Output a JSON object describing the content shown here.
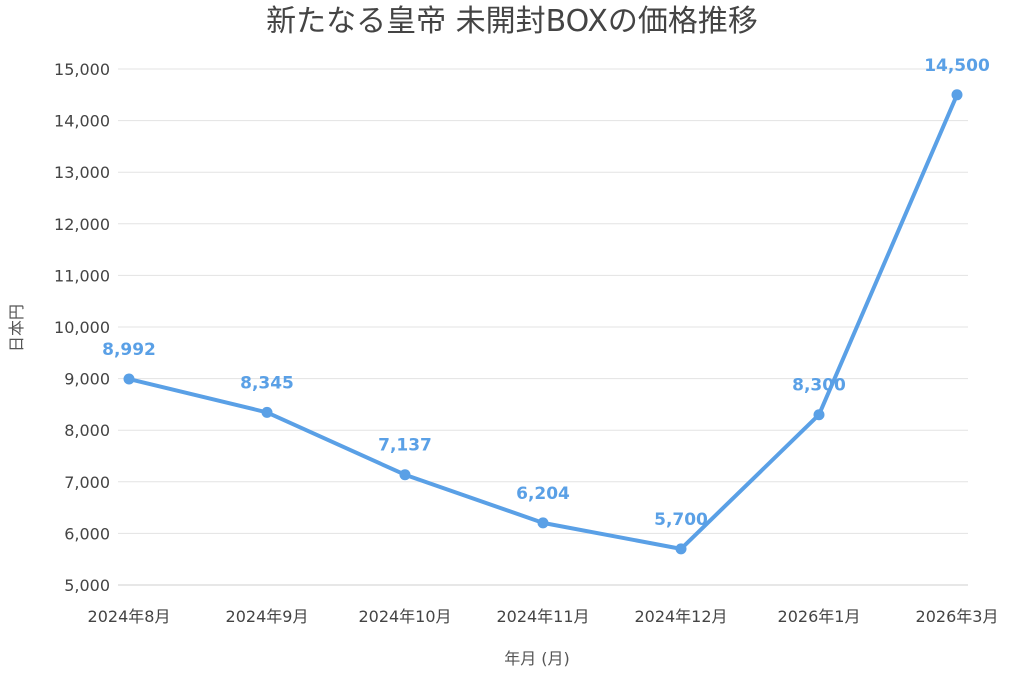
{
  "chart_data": {
    "type": "line",
    "title": "新たなる皇帝 未開封BOXの価格推移",
    "xlabel": "年月 (月)",
    "ylabel": "日本円",
    "categories": [
      "2024年8月",
      "2024年9月",
      "2024年10月",
      "2024年11月",
      "2024年12月",
      "2026年1月",
      "2026年3月"
    ],
    "series": [
      {
        "values": [
          8992,
          8345,
          7137,
          6204,
          5700,
          8300,
          14500
        ],
        "labels": [
          "8,992",
          "8,345",
          "7,137",
          "6,204",
          "5,700",
          "8,300",
          "14,500"
        ]
      }
    ],
    "ylim": [
      5000,
      15000
    ],
    "yticks": [
      5000,
      6000,
      7000,
      8000,
      9000,
      10000,
      11000,
      12000,
      13000,
      14000,
      15000
    ],
    "ytick_labels": [
      "5,000",
      "6,000",
      "7,000",
      "8,000",
      "9,000",
      "10,000",
      "11,000",
      "12,000",
      "13,000",
      "14,000",
      "15,000"
    ],
    "grid": true,
    "legend": "none",
    "colors": {
      "line": "#5aa0e6",
      "label": "#5aa0e6",
      "grid": "#e3e3e3",
      "text": "#444444"
    }
  }
}
